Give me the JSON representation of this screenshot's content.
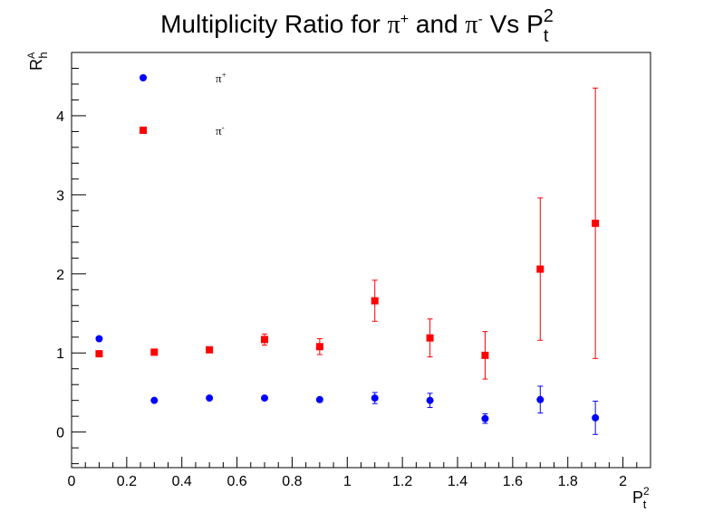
{
  "chart_data": {
    "type": "scatter",
    "title_parts": {
      "main": "Multiplicity Ratio for ",
      "pi": "π",
      "plus": "+",
      "and": " and ",
      "minus": "-",
      "vs": " Vs P",
      "sup2": "2",
      "subt": "t"
    },
    "xlabel": {
      "base": "P",
      "sub": "t",
      "sup": "2"
    },
    "ylabel": {
      "base": "R",
      "sub": "h",
      "sup": "A"
    },
    "xlim": [
      0,
      2.1
    ],
    "ylim": [
      -0.45,
      4.8
    ],
    "x_ticks": [
      {
        "v": 0,
        "label": "0"
      },
      {
        "v": 0.2,
        "label": "0.2"
      },
      {
        "v": 0.4,
        "label": "0.4"
      },
      {
        "v": 0.6,
        "label": "0.6"
      },
      {
        "v": 0.8,
        "label": "0.8"
      },
      {
        "v": 1,
        "label": "1"
      },
      {
        "v": 1.2,
        "label": "1.2"
      },
      {
        "v": 1.4,
        "label": "1.4"
      },
      {
        "v": 1.6,
        "label": "1.6"
      },
      {
        "v": 1.8,
        "label": "1.8"
      },
      {
        "v": 2,
        "label": "2"
      }
    ],
    "y_ticks": [
      {
        "v": 0,
        "label": "0"
      },
      {
        "v": 1,
        "label": "1"
      },
      {
        "v": 2,
        "label": "2"
      },
      {
        "v": 3,
        "label": "3"
      },
      {
        "v": 4,
        "label": "4"
      }
    ],
    "series": [
      {
        "name": "π+",
        "legend_label": "π",
        "legend_sup": "+",
        "color": "#0000ff",
        "marker": "circle",
        "points": [
          {
            "x": 0.1,
            "y": 1.18,
            "err": 0.02
          },
          {
            "x": 0.3,
            "y": 0.4,
            "err": 0.02
          },
          {
            "x": 0.5,
            "y": 0.43,
            "err": 0.02
          },
          {
            "x": 0.7,
            "y": 0.43,
            "err": 0.03
          },
          {
            "x": 0.9,
            "y": 0.41,
            "err": 0.04
          },
          {
            "x": 1.1,
            "y": 0.43,
            "err": 0.07
          },
          {
            "x": 1.3,
            "y": 0.4,
            "err": 0.09
          },
          {
            "x": 1.5,
            "y": 0.17,
            "err": 0.06
          },
          {
            "x": 1.7,
            "y": 0.41,
            "err": 0.17
          },
          {
            "x": 1.9,
            "y": 0.18,
            "err": 0.21
          }
        ]
      },
      {
        "name": "π-",
        "legend_label": "π",
        "legend_sup": "-",
        "color": "#ff0000",
        "marker": "square",
        "points": [
          {
            "x": 0.1,
            "y": 0.99,
            "err": 0.02
          },
          {
            "x": 0.3,
            "y": 1.01,
            "err": 0.03
          },
          {
            "x": 0.5,
            "y": 1.04,
            "err": 0.03
          },
          {
            "x": 0.7,
            "y": 1.17,
            "err": 0.07
          },
          {
            "x": 0.9,
            "y": 1.08,
            "err": 0.1
          },
          {
            "x": 1.1,
            "y": 1.66,
            "err": 0.26
          },
          {
            "x": 1.3,
            "y": 1.19,
            "err": 0.24
          },
          {
            "x": 1.5,
            "y": 0.97,
            "err": 0.3
          },
          {
            "x": 1.7,
            "y": 2.06,
            "err": 0.9
          },
          {
            "x": 1.9,
            "y": 2.64,
            "err": 1.71
          }
        ]
      }
    ]
  }
}
